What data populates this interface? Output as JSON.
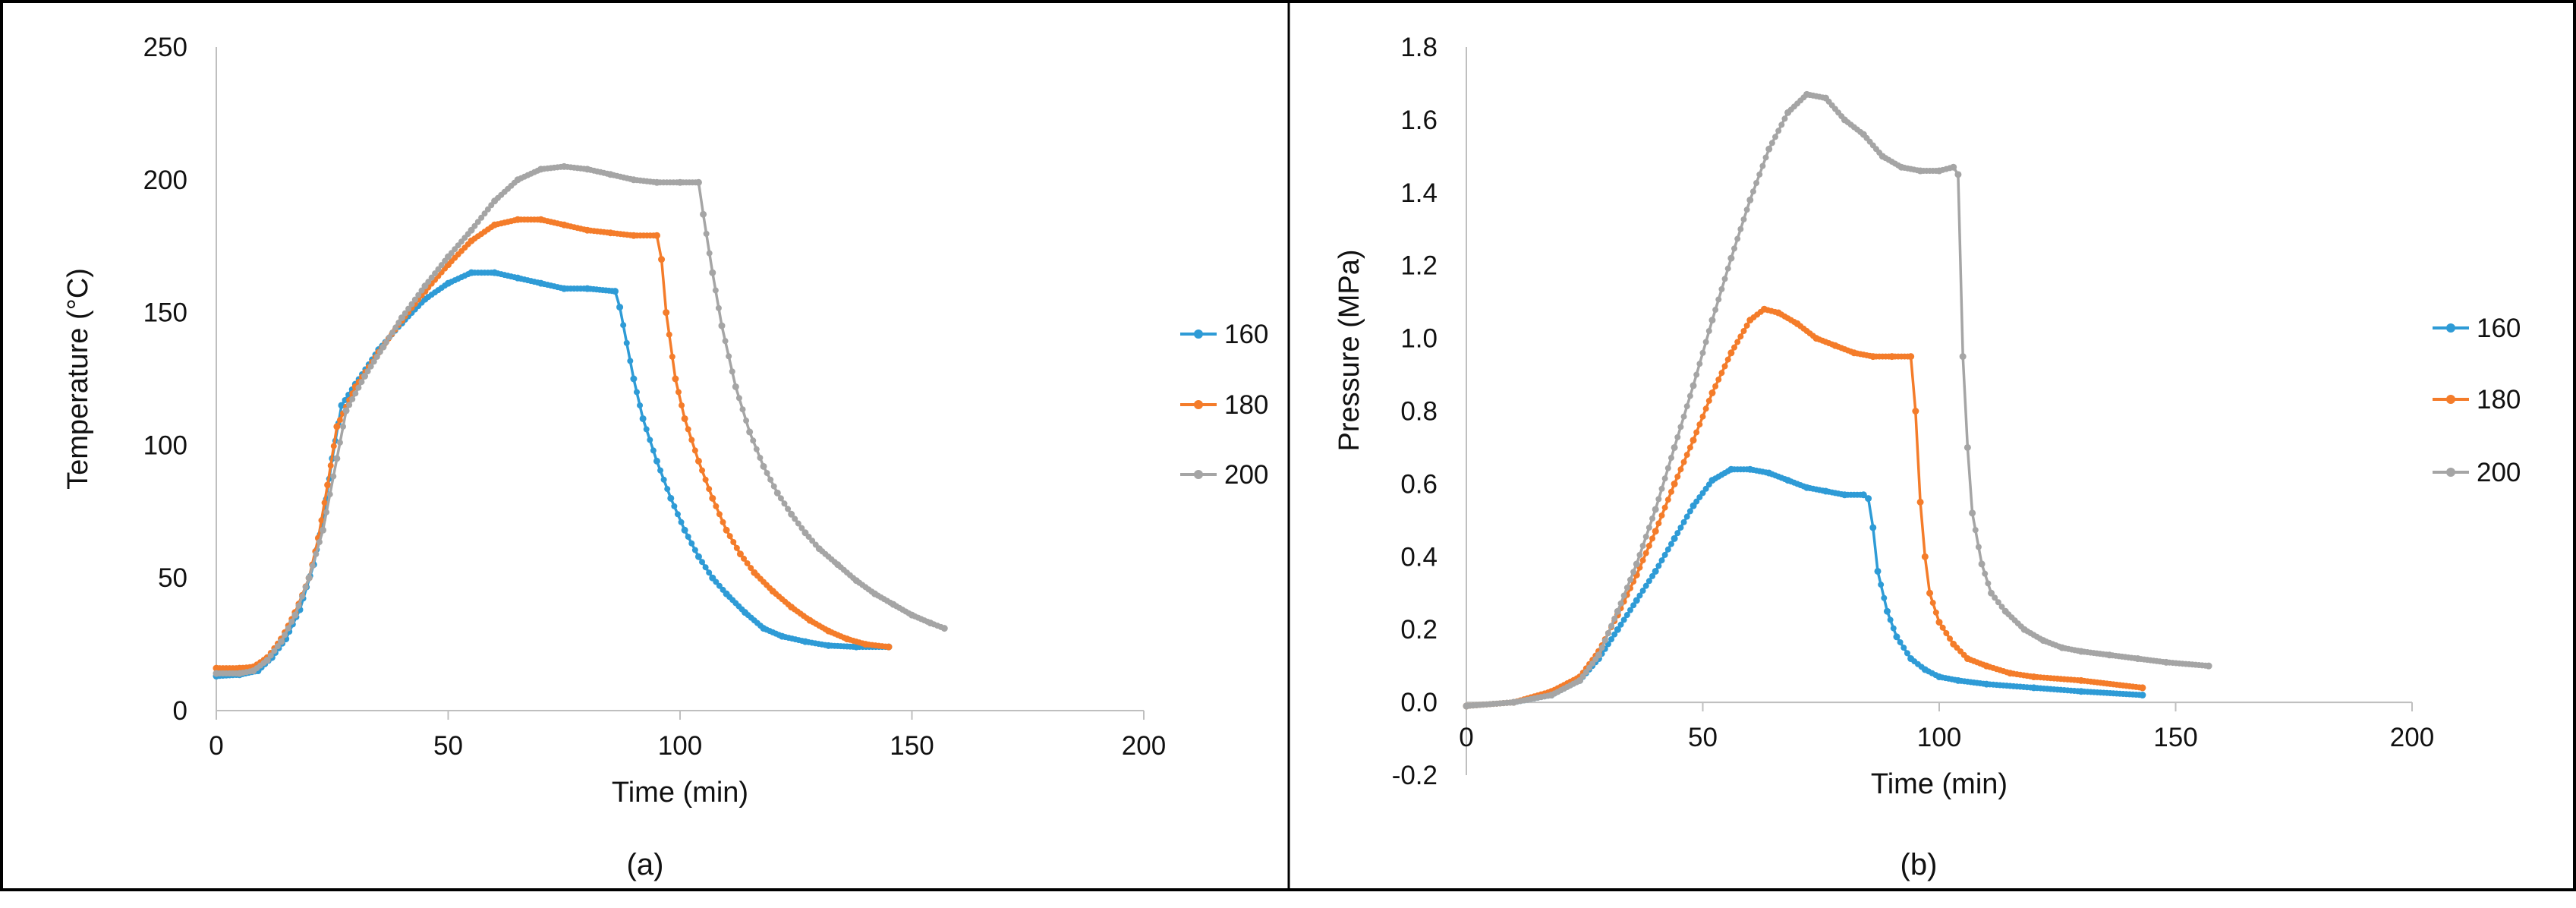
{
  "chart_data": [
    {
      "id": "a",
      "type": "line",
      "panel_label": "(a)",
      "xlabel": "Time (min)",
      "ylabel": "Temperature (°C)",
      "xlim": [
        0,
        200
      ],
      "ylim": [
        0,
        250
      ],
      "x_ticks": [
        "0",
        "50",
        "100",
        "150",
        "200"
      ],
      "y_ticks": [
        "0",
        "50",
        "100",
        "150",
        "200",
        "250"
      ],
      "grid": false,
      "legend_position": "right",
      "series": [
        {
          "name": "160",
          "color": "#2E9BD6",
          "points": [
            [
              0,
              13
            ],
            [
              5,
              13.5
            ],
            [
              9,
              15
            ],
            [
              12,
              20
            ],
            [
              15,
              27
            ],
            [
              18,
              38
            ],
            [
              21,
              55
            ],
            [
              23,
              72
            ],
            [
              25,
              95
            ],
            [
              27,
              115
            ],
            [
              30,
              123
            ],
            [
              35,
              136
            ],
            [
              40,
              146
            ],
            [
              45,
              155
            ],
            [
              50,
              161
            ],
            [
              55,
              165
            ],
            [
              60,
              165
            ],
            [
              65,
              163
            ],
            [
              70,
              161
            ],
            [
              75,
              159
            ],
            [
              80,
              159
            ],
            [
              86,
              158
            ],
            [
              87,
              152
            ],
            [
              90,
              125
            ],
            [
              92,
              110
            ],
            [
              95,
              94
            ],
            [
              98,
              80
            ],
            [
              101,
              68
            ],
            [
              104,
              58
            ],
            [
              107,
              50
            ],
            [
              110,
              44
            ],
            [
              114,
              37
            ],
            [
              118,
              31
            ],
            [
              122,
              28
            ],
            [
              127,
              26
            ],
            [
              132,
              24.5
            ],
            [
              138,
              24
            ],
            [
              145,
              24
            ]
          ]
        },
        {
          "name": "180",
          "color": "#F47C2A",
          "points": [
            [
              0,
              16
            ],
            [
              5,
              16
            ],
            [
              8,
              16.5
            ],
            [
              11,
              20
            ],
            [
              14,
              27
            ],
            [
              17,
              37
            ],
            [
              20,
              50
            ],
            [
              22,
              65
            ],
            [
              24,
              85
            ],
            [
              26,
              107
            ],
            [
              30,
              122
            ],
            [
              35,
              135
            ],
            [
              40,
              147
            ],
            [
              45,
              158
            ],
            [
              50,
              168
            ],
            [
              55,
              177
            ],
            [
              60,
              183
            ],
            [
              65,
              185
            ],
            [
              70,
              185
            ],
            [
              75,
              183
            ],
            [
              80,
              181
            ],
            [
              85,
              180
            ],
            [
              90,
              179
            ],
            [
              95,
              179
            ],
            [
              96,
              170
            ],
            [
              97,
              150
            ],
            [
              99,
              125
            ],
            [
              101,
              110
            ],
            [
              104,
              94
            ],
            [
              107,
              80
            ],
            [
              110,
              68
            ],
            [
              113,
              59
            ],
            [
              116,
              52
            ],
            [
              120,
              45
            ],
            [
              124,
              39
            ],
            [
              128,
              34
            ],
            [
              132,
              30
            ],
            [
              136,
              27
            ],
            [
              140,
              25
            ],
            [
              145,
              24
            ]
          ]
        },
        {
          "name": "200",
          "color": "#A5A5A5",
          "points": [
            [
              0,
              14
            ],
            [
              5,
              14
            ],
            [
              8,
              15
            ],
            [
              11,
              19
            ],
            [
              14,
              26
            ],
            [
              17,
              36
            ],
            [
              20,
              50
            ],
            [
              23,
              68
            ],
            [
              26,
              95
            ],
            [
              28,
              113
            ],
            [
              32,
              126
            ],
            [
              36,
              137
            ],
            [
              40,
              148
            ],
            [
              45,
              160
            ],
            [
              50,
              171
            ],
            [
              55,
              181
            ],
            [
              60,
              192
            ],
            [
              65,
              200
            ],
            [
              70,
              204
            ],
            [
              75,
              205
            ],
            [
              80,
              204
            ],
            [
              85,
              202
            ],
            [
              90,
              200
            ],
            [
              95,
              199
            ],
            [
              100,
              199
            ],
            [
              104,
              199
            ],
            [
              105,
              187
            ],
            [
              107,
              165
            ],
            [
              109,
              145
            ],
            [
              112,
              122
            ],
            [
              115,
              105
            ],
            [
              118,
              92
            ],
            [
              121,
              82
            ],
            [
              124,
              74
            ],
            [
              127,
              67
            ],
            [
              130,
              61
            ],
            [
              134,
              55
            ],
            [
              138,
              49
            ],
            [
              142,
              44
            ],
            [
              146,
              40
            ],
            [
              150,
              36
            ],
            [
              154,
              33
            ],
            [
              157,
              31
            ]
          ]
        }
      ]
    },
    {
      "id": "b",
      "type": "line",
      "panel_label": "(b)",
      "xlabel": "Time (min)",
      "ylabel": "Pressure  (MPa)",
      "xlim": [
        0,
        200
      ],
      "ylim": [
        -0.2,
        1.8
      ],
      "x_ticks": [
        "0",
        "50",
        "100",
        "150",
        "200"
      ],
      "y_ticks": [
        "-0.2",
        "0.0",
        "0.2",
        "0.4",
        "0.6",
        "0.8",
        "1.0",
        "1.2",
        "1.4",
        "1.6",
        "1.8"
      ],
      "grid": false,
      "legend_position": "right",
      "series": [
        {
          "name": "160",
          "color": "#2E9BD6",
          "points": [
            [
              0,
              -0.01
            ],
            [
              10,
              0
            ],
            [
              18,
              0.02
            ],
            [
              24,
              0.06
            ],
            [
              28,
              0.12
            ],
            [
              32,
              0.2
            ],
            [
              36,
              0.28
            ],
            [
              40,
              0.36
            ],
            [
              44,
              0.45
            ],
            [
              48,
              0.54
            ],
            [
              52,
              0.61
            ],
            [
              56,
              0.64
            ],
            [
              60,
              0.64
            ],
            [
              64,
              0.63
            ],
            [
              68,
              0.61
            ],
            [
              72,
              0.59
            ],
            [
              76,
              0.58
            ],
            [
              80,
              0.57
            ],
            [
              84,
              0.57
            ],
            [
              85,
              0.56
            ],
            [
              86,
              0.48
            ],
            [
              87,
              0.36
            ],
            [
              89,
              0.25
            ],
            [
              91,
              0.18
            ],
            [
              94,
              0.12
            ],
            [
              97,
              0.09
            ],
            [
              100,
              0.07
            ],
            [
              104,
              0.06
            ],
            [
              110,
              0.05
            ],
            [
              120,
              0.04
            ],
            [
              130,
              0.03
            ],
            [
              143,
              0.02
            ]
          ]
        },
        {
          "name": "180",
          "color": "#F47C2A",
          "points": [
            [
              0,
              -0.01
            ],
            [
              10,
              0
            ],
            [
              18,
              0.03
            ],
            [
              24,
              0.07
            ],
            [
              28,
              0.14
            ],
            [
              32,
              0.24
            ],
            [
              36,
              0.35
            ],
            [
              40,
              0.47
            ],
            [
              44,
              0.6
            ],
            [
              48,
              0.72
            ],
            [
              52,
              0.85
            ],
            [
              56,
              0.96
            ],
            [
              60,
              1.05
            ],
            [
              63,
              1.08
            ],
            [
              66,
              1.07
            ],
            [
              70,
              1.04
            ],
            [
              74,
              1.0
            ],
            [
              78,
              0.98
            ],
            [
              82,
              0.96
            ],
            [
              86,
              0.95
            ],
            [
              90,
              0.95
            ],
            [
              94,
              0.95
            ],
            [
              95,
              0.8
            ],
            [
              96,
              0.55
            ],
            [
              97,
              0.4
            ],
            [
              98,
              0.3
            ],
            [
              100,
              0.22
            ],
            [
              103,
              0.16
            ],
            [
              106,
              0.12
            ],
            [
              110,
              0.1
            ],
            [
              115,
              0.08
            ],
            [
              120,
              0.07
            ],
            [
              130,
              0.06
            ],
            [
              143,
              0.04
            ]
          ]
        },
        {
          "name": "200",
          "color": "#A5A5A5",
          "points": [
            [
              0,
              -0.01
            ],
            [
              10,
              0
            ],
            [
              18,
              0.02
            ],
            [
              24,
              0.06
            ],
            [
              28,
              0.13
            ],
            [
              32,
              0.25
            ],
            [
              36,
              0.38
            ],
            [
              40,
              0.53
            ],
            [
              44,
              0.7
            ],
            [
              48,
              0.87
            ],
            [
              52,
              1.05
            ],
            [
              56,
              1.22
            ],
            [
              60,
              1.38
            ],
            [
              64,
              1.52
            ],
            [
              68,
              1.62
            ],
            [
              72,
              1.67
            ],
            [
              76,
              1.66
            ],
            [
              80,
              1.6
            ],
            [
              84,
              1.56
            ],
            [
              88,
              1.5
            ],
            [
              92,
              1.47
            ],
            [
              96,
              1.46
            ],
            [
              100,
              1.46
            ],
            [
              103,
              1.47
            ],
            [
              104,
              1.45
            ],
            [
              105,
              0.95
            ],
            [
              106,
              0.7
            ],
            [
              107,
              0.52
            ],
            [
              109,
              0.38
            ],
            [
              111,
              0.3
            ],
            [
              114,
              0.25
            ],
            [
              118,
              0.2
            ],
            [
              122,
              0.17
            ],
            [
              126,
              0.15
            ],
            [
              130,
              0.14
            ],
            [
              136,
              0.13
            ],
            [
              142,
              0.12
            ],
            [
              148,
              0.11
            ],
            [
              157,
              0.1
            ]
          ]
        }
      ]
    }
  ]
}
